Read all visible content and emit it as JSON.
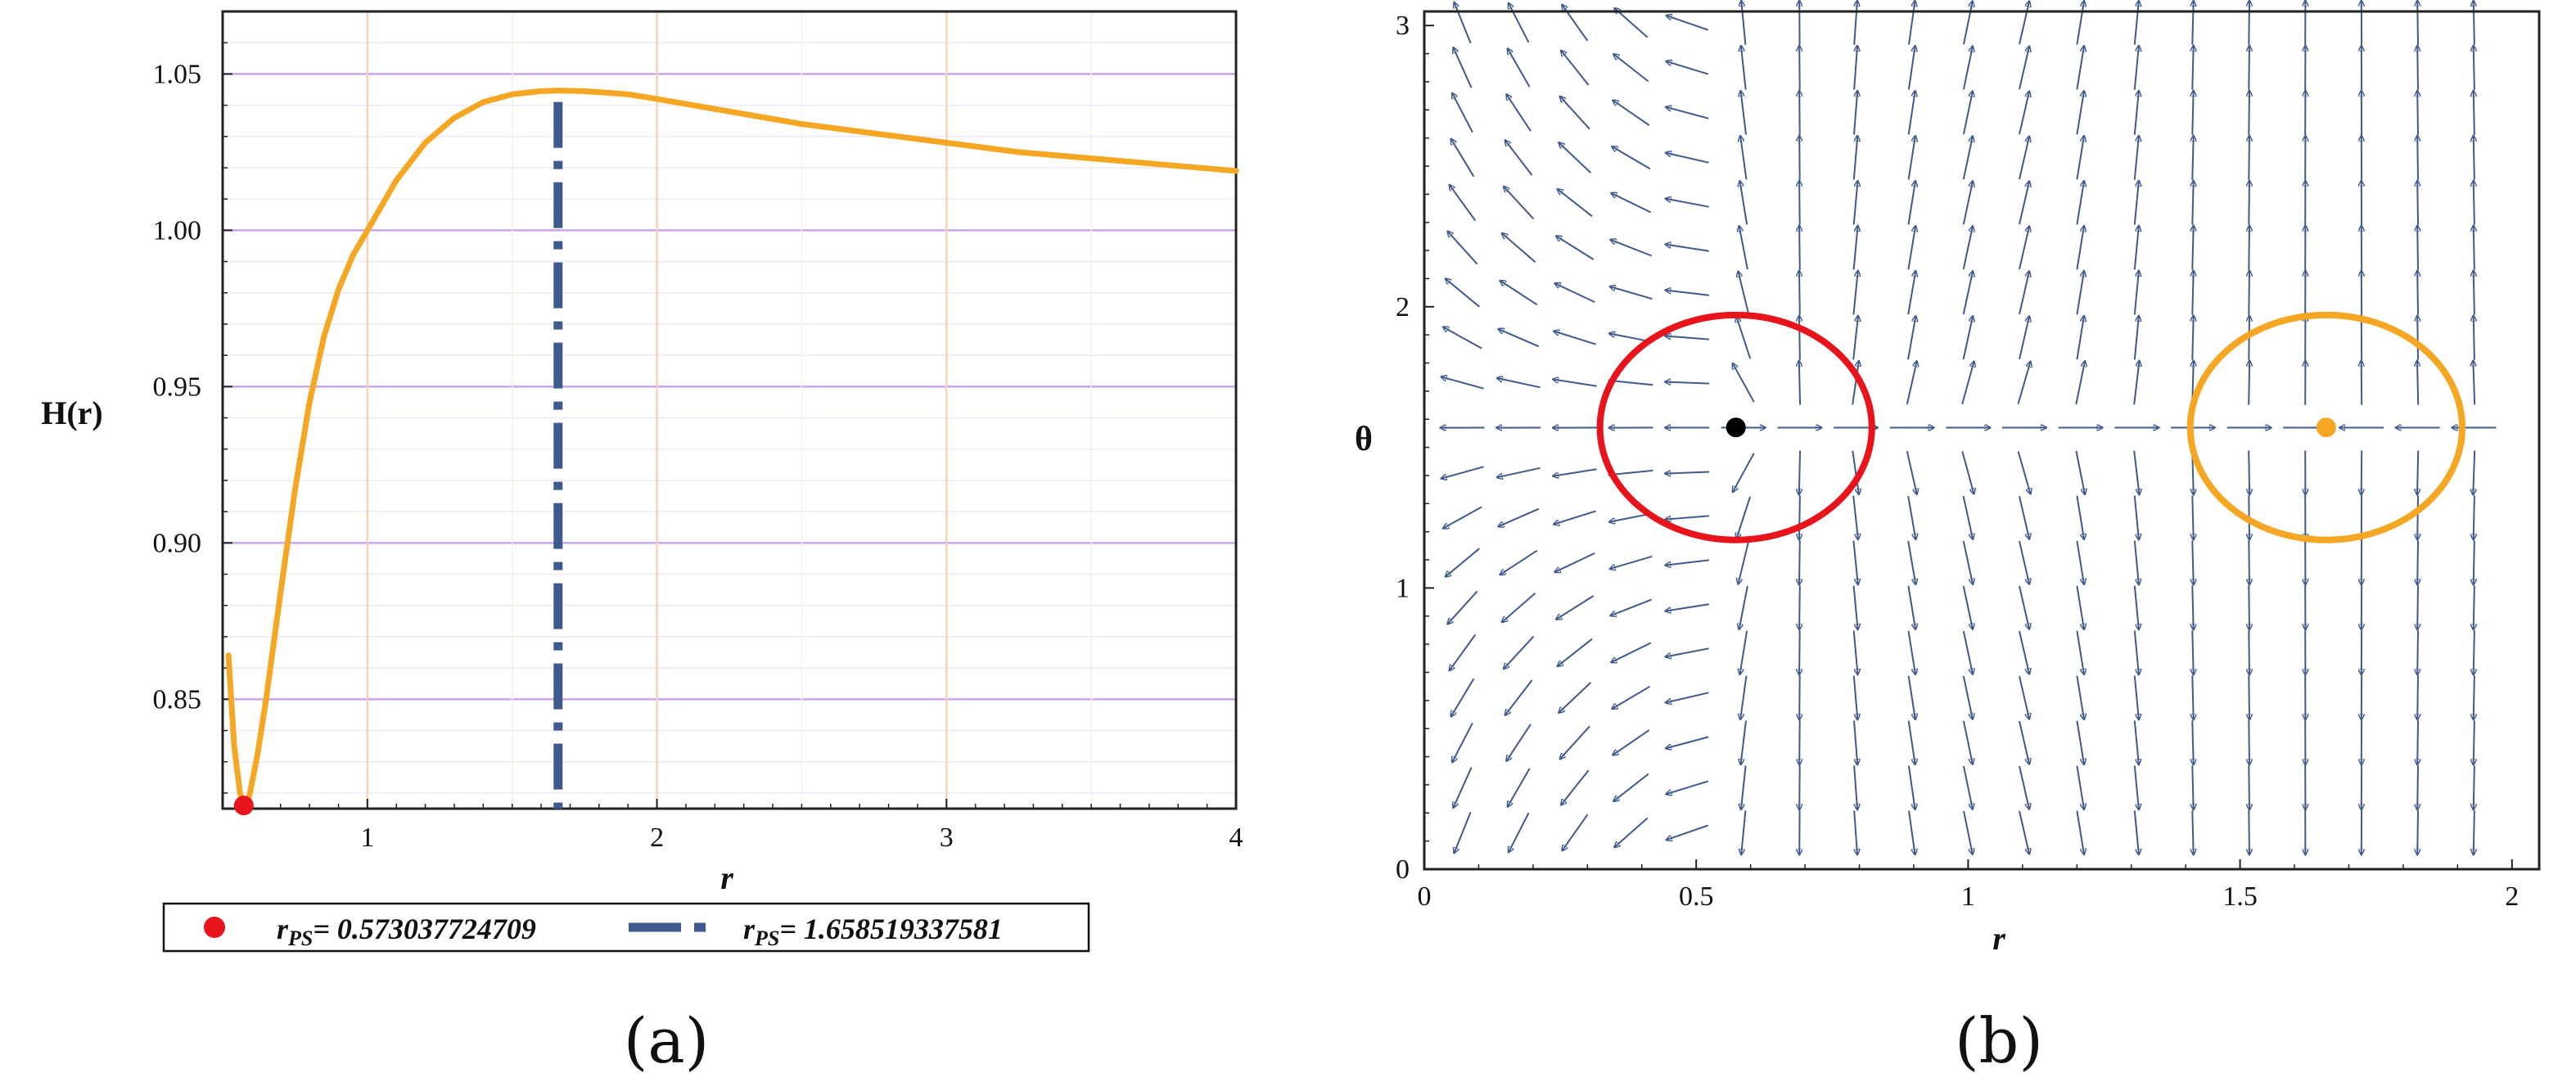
{
  "chart_data": [
    {
      "panel": "a",
      "type": "line",
      "xlabel": "r",
      "ylabel": "H(r)",
      "xlim": [
        0.5,
        4.0
      ],
      "ylim": [
        0.815,
        1.07
      ],
      "x_ticks": [
        1,
        2,
        3,
        4
      ],
      "x_tick_labels": [
        "1",
        "2",
        "3",
        "4"
      ],
      "y_ticks": [
        0.85,
        0.9,
        0.95,
        1.0,
        1.05
      ],
      "y_tick_labels": [
        "0.85",
        "0.90",
        "0.95",
        "1.00",
        "1.05"
      ],
      "grid": true,
      "series": [
        {
          "type": "line",
          "color": "#f5a623",
          "x": [
            0.52,
            0.54,
            0.56,
            0.573,
            0.59,
            0.62,
            0.65,
            0.7,
            0.75,
            0.8,
            0.85,
            0.9,
            0.95,
            1.0,
            1.1,
            1.2,
            1.3,
            1.4,
            1.5,
            1.6,
            1.658,
            1.75,
            1.9,
            2.0,
            2.25,
            2.5,
            2.75,
            3.0,
            3.25,
            3.5,
            3.75,
            4.0
          ],
          "y": [
            0.864,
            0.835,
            0.82,
            0.816,
            0.818,
            0.832,
            0.85,
            0.884,
            0.917,
            0.945,
            0.966,
            0.981,
            0.992,
            1.0,
            1.016,
            1.028,
            1.036,
            1.041,
            1.0435,
            1.0445,
            1.0447,
            1.0445,
            1.0435,
            1.042,
            1.038,
            1.034,
            1.031,
            1.028,
            1.025,
            1.023,
            1.021,
            1.019
          ]
        }
      ],
      "markers": [
        {
          "name": "rPS",
          "x": 0.573037724709,
          "y": 0.816,
          "color": "#e8141c",
          "legend_prefix": "r",
          "legend_subscript": "PS",
          "legend_value": "= 0.573037724709"
        }
      ],
      "vlines": [
        {
          "name": "rPS",
          "x": 1.658519337581,
          "color": "#3f5a8c",
          "style": "dashdot",
          "legend_prefix": "r",
          "legend_subscript": "PS",
          "legend_value": "= 1.658519337581"
        }
      ]
    },
    {
      "panel": "b",
      "type": "vector_field",
      "xlabel": "r",
      "ylabel": "θ",
      "xlim": [
        0,
        2.05
      ],
      "ylim": [
        0,
        3.05
      ],
      "x_ticks": [
        0,
        0.5,
        1,
        1.5,
        2
      ],
      "x_tick_labels": [
        "0",
        "0.5",
        "1",
        "1.5",
        "2"
      ],
      "y_ticks": [
        0,
        1,
        2,
        3
      ],
      "y_tick_labels": [
        "0",
        "1",
        "2",
        "3"
      ],
      "arrow_color": "#3f5a8c",
      "critical_points": [
        {
          "r": 0.573,
          "theta": 1.5708,
          "color": "#000000"
        },
        {
          "r": 1.6585,
          "theta": 1.5708,
          "color": "#f5a623"
        }
      ],
      "contours": [
        {
          "center_r": 0.573,
          "center_theta": 1.5708,
          "radius_r": 0.25,
          "radius_theta": 0.4,
          "color": "#e8141c"
        },
        {
          "center_r": 1.6585,
          "center_theta": 1.5708,
          "radius_r": 0.25,
          "radius_theta": 0.4,
          "color": "#f5a623"
        }
      ]
    }
  ],
  "sublabels": {
    "a": "(a)",
    "b": "(b)"
  }
}
